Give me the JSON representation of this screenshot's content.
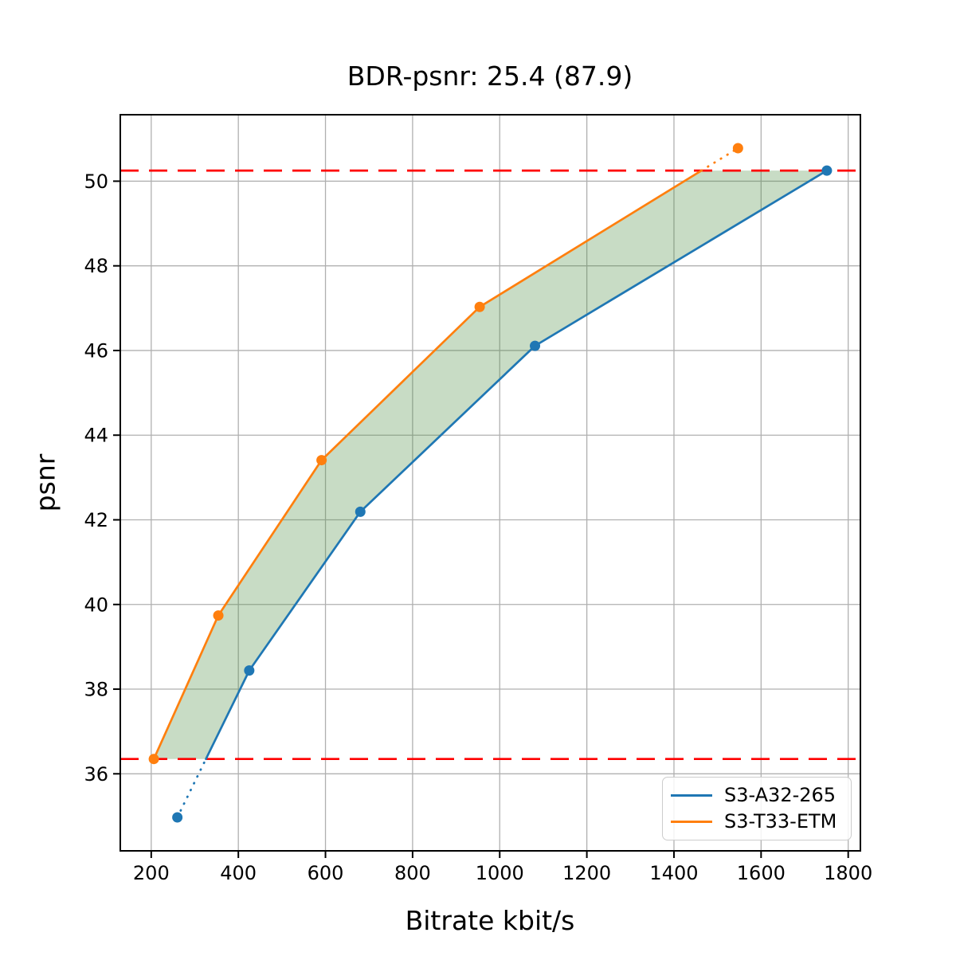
{
  "chart_data": {
    "type": "line",
    "title": "BDR-psnr: 25.4 (87.9)",
    "xlabel": "Bitrate kbit/s",
    "ylabel": "psnr",
    "xlim": [
      129,
      1828
    ],
    "ylim": [
      34.18,
      51.57
    ],
    "xticks": [
      200,
      400,
      600,
      800,
      1000,
      1200,
      1400,
      1600,
      1800
    ],
    "yticks": [
      36,
      38,
      40,
      42,
      44,
      46,
      48,
      50
    ],
    "grid": true,
    "grid_color": "#b0b0b0",
    "axes_color": "#000000",
    "legend_position": "lower right",
    "series": [
      {
        "name": "S3-A32-265",
        "color": "#1f77b4",
        "marker": "circle",
        "x": [
          260,
          425,
          680,
          1081,
          1751
        ],
        "y": [
          34.97,
          38.44,
          42.19,
          46.11,
          50.25
        ]
      },
      {
        "name": "S3-T33-ETM",
        "color": "#ff7f0e",
        "marker": "circle",
        "x": [
          206,
          354,
          591,
          954,
          1547
        ],
        "y": [
          36.35,
          39.74,
          43.41,
          47.03,
          50.78
        ]
      }
    ],
    "hlines": [
      {
        "y": 36.35,
        "color": "#ff0000",
        "style": "dashed"
      },
      {
        "y": 50.25,
        "color": "#ff0000",
        "style": "dashed"
      }
    ],
    "shaded_region": {
      "between_series": [
        "S3-T33-ETM",
        "S3-A32-265"
      ],
      "y_range": [
        36.35,
        50.25
      ],
      "color": "#4a8c3f",
      "alpha": 0.3
    },
    "line_style_note": "solid inside y_range, dotted outside"
  }
}
